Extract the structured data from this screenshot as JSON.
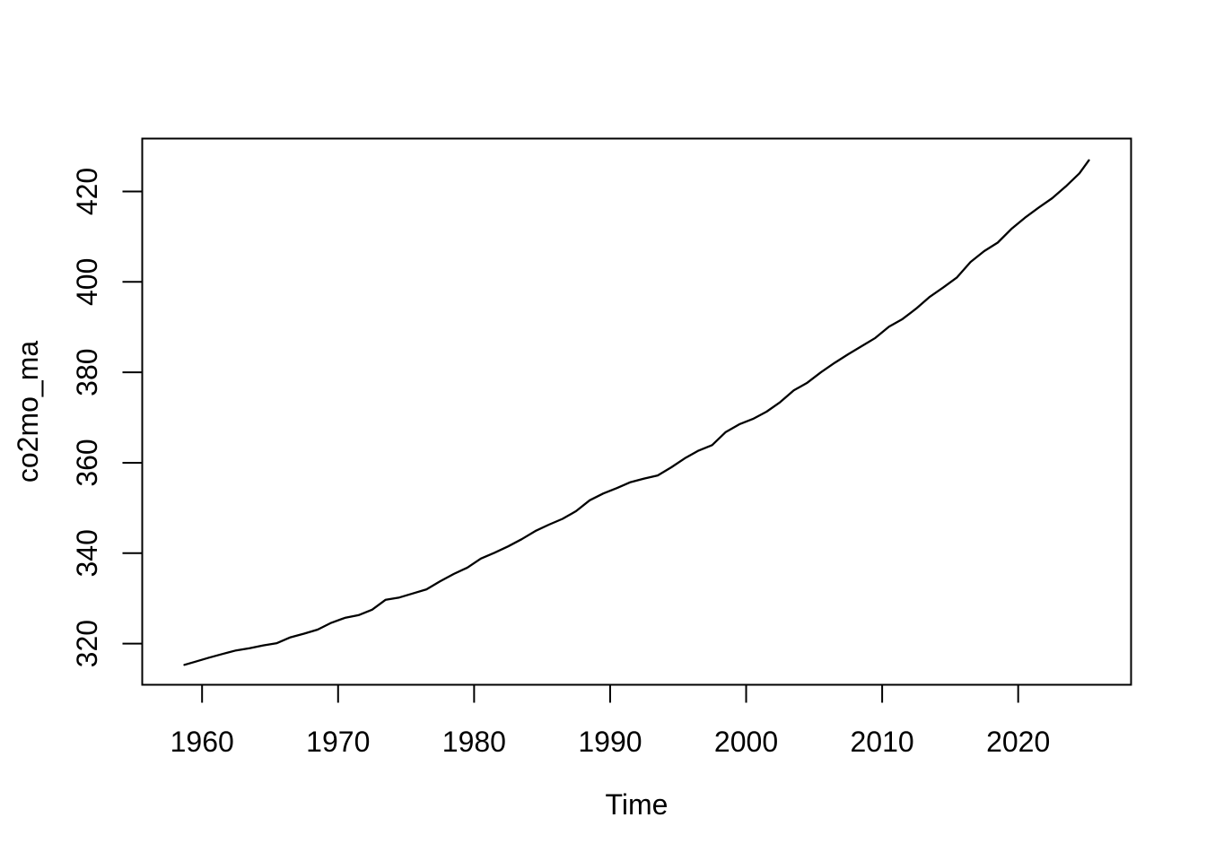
{
  "figure": {
    "background": "#ffffff",
    "line_color": "#000000",
    "axis_color": "#000000"
  },
  "chart_data": {
    "type": "line",
    "title": "",
    "xlabel": "Time",
    "ylabel": "co2mo_ma",
    "legend_position": "none",
    "grid": false,
    "x_ticks": [
      1960,
      1970,
      1980,
      1990,
      2000,
      2010,
      2020
    ],
    "y_ticks": [
      320,
      340,
      360,
      380,
      400,
      420
    ],
    "xlim": [
      1955.6,
      2028.3
    ],
    "ylim": [
      310.9,
      431.7
    ],
    "series": [
      {
        "name": "co2mo_ma",
        "points": [
          [
            1958.7,
            315.3
          ],
          [
            1959.5,
            316.0
          ],
          [
            1960.5,
            316.9
          ],
          [
            1961.5,
            317.7
          ],
          [
            1962.5,
            318.5
          ],
          [
            1963.5,
            319.0
          ],
          [
            1964.5,
            319.6
          ],
          [
            1965.5,
            320.1
          ],
          [
            1966.5,
            321.4
          ],
          [
            1967.5,
            322.2
          ],
          [
            1968.5,
            323.1
          ],
          [
            1969.5,
            324.6
          ],
          [
            1970.5,
            325.7
          ],
          [
            1971.5,
            326.3
          ],
          [
            1972.5,
            327.5
          ],
          [
            1973.5,
            329.7
          ],
          [
            1974.5,
            330.2
          ],
          [
            1975.5,
            331.1
          ],
          [
            1976.5,
            332.0
          ],
          [
            1977.5,
            333.8
          ],
          [
            1978.5,
            335.4
          ],
          [
            1979.5,
            336.8
          ],
          [
            1980.5,
            338.8
          ],
          [
            1981.5,
            340.1
          ],
          [
            1982.5,
            341.5
          ],
          [
            1983.5,
            343.1
          ],
          [
            1984.5,
            344.9
          ],
          [
            1985.5,
            346.3
          ],
          [
            1986.5,
            347.6
          ],
          [
            1987.5,
            349.3
          ],
          [
            1988.5,
            351.7
          ],
          [
            1989.5,
            353.2
          ],
          [
            1990.5,
            354.4
          ],
          [
            1991.5,
            355.7
          ],
          [
            1992.5,
            356.5
          ],
          [
            1993.5,
            357.2
          ],
          [
            1994.5,
            359.0
          ],
          [
            1995.5,
            361.0
          ],
          [
            1996.5,
            362.7
          ],
          [
            1997.5,
            363.9
          ],
          [
            1998.5,
            366.8
          ],
          [
            1999.5,
            368.5
          ],
          [
            2000.5,
            369.7
          ],
          [
            2001.5,
            371.3
          ],
          [
            2002.5,
            373.4
          ],
          [
            2003.5,
            376.0
          ],
          [
            2004.5,
            377.7
          ],
          [
            2005.5,
            380.0
          ],
          [
            2006.5,
            382.1
          ],
          [
            2007.5,
            384.0
          ],
          [
            2008.5,
            385.8
          ],
          [
            2009.5,
            387.6
          ],
          [
            2010.5,
            390.1
          ],
          [
            2011.5,
            391.8
          ],
          [
            2012.5,
            394.1
          ],
          [
            2013.5,
            396.7
          ],
          [
            2014.5,
            398.8
          ],
          [
            2015.5,
            401.0
          ],
          [
            2016.5,
            404.4
          ],
          [
            2017.5,
            406.8
          ],
          [
            2018.5,
            408.7
          ],
          [
            2019.5,
            411.7
          ],
          [
            2020.5,
            414.2
          ],
          [
            2021.5,
            416.4
          ],
          [
            2022.5,
            418.5
          ],
          [
            2023.5,
            421.1
          ],
          [
            2024.5,
            424.0
          ],
          [
            2025.2,
            426.9
          ]
        ]
      }
    ]
  }
}
